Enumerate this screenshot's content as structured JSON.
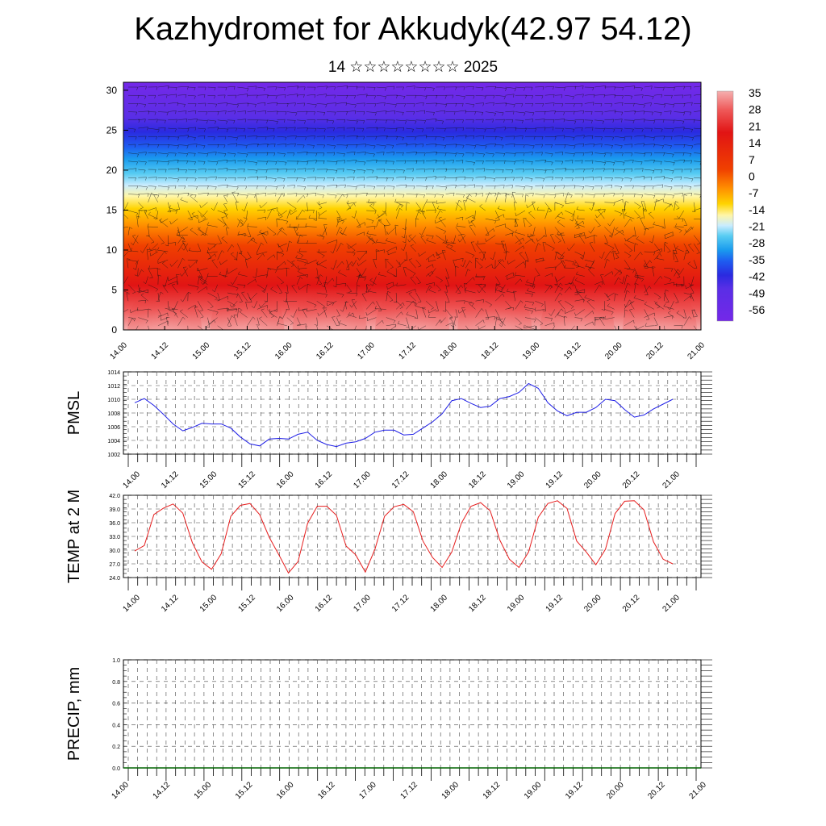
{
  "title": "Kazhydromet for Akkudyk(42.97 54.12)",
  "subtitle": "14 ☆☆☆☆☆☆☆☆ 2025",
  "time_labels": [
    "14.00",
    "14.12",
    "15.00",
    "15.12",
    "16.00",
    "16.12",
    "17.00",
    "17.12",
    "18.00",
    "18.12",
    "19.00",
    "19.12",
    "20.00",
    "20.12",
    "21.00"
  ],
  "chart_data": [
    {
      "type": "heatmap",
      "name": "cross-section",
      "x": [
        "14.00",
        "14.12",
        "15.00",
        "15.12",
        "16.00",
        "16.12",
        "17.00",
        "17.12",
        "18.00",
        "18.12",
        "19.00",
        "19.12",
        "20.00",
        "20.12",
        "21.00"
      ],
      "y_ticks": [
        "0",
        "5",
        "10",
        "15",
        "20",
        "25",
        "30"
      ],
      "ylim": [
        0,
        31
      ],
      "colorbar_labels": [
        "35",
        "28",
        "21",
        "14",
        "7",
        "0",
        "-7",
        "-14",
        "-21",
        "-28",
        "-35",
        "-42",
        "-49",
        "-56"
      ],
      "colors": [
        "#f5b8b8",
        "#e81818",
        "#ff7a00",
        "#ffd000",
        "#fff8a0",
        "#bfe8ff",
        "#18b4ee",
        "#2040ff",
        "#6a28e8"
      ],
      "description_values": "temperature shading with wind barbs by model level"
    },
    {
      "type": "line",
      "ylabel": "PMSL",
      "ylim": [
        1002,
        1014
      ],
      "y_ticks": [
        "1002",
        "1004",
        "1006",
        "1008",
        "1010",
        "1012",
        "1014"
      ],
      "color": "#1e1ee6",
      "values": [
        1009.5,
        1010.1,
        1009.1,
        1007.8,
        1006.4,
        1005.4,
        1005.9,
        1006.5,
        1006.4,
        1006.4,
        1005.8,
        1004.5,
        1003.5,
        1003.2,
        1004.2,
        1004.3,
        1004.2,
        1004.9,
        1005.2,
        1004.0,
        1003.4,
        1003.1,
        1003.6,
        1003.8,
        1004.3,
        1005.2,
        1005.5,
        1005.5,
        1004.8,
        1004.9,
        1005.8,
        1006.7,
        1007.9,
        1009.8,
        1010.1,
        1009.4,
        1008.8,
        1009.0,
        1010.1,
        1010.4,
        1011.0,
        1012.3,
        1011.6,
        1009.5,
        1008.3,
        1007.6,
        1008.1,
        1008.1,
        1008.8,
        1010.0,
        1009.8,
        1008.5,
        1007.4,
        1007.7,
        1008.6,
        1009.3,
        1010.0
      ]
    },
    {
      "type": "line",
      "ylabel": "TEMP at 2 M",
      "ylim": [
        24,
        42
      ],
      "y_ticks": [
        "24.0",
        "27.0",
        "30.0",
        "33.0",
        "36.0",
        "39.0",
        "42.0"
      ],
      "color": "#e61e1e",
      "values": [
        29.8,
        31.0,
        37.8,
        39.2,
        40.1,
        38.1,
        31.6,
        27.4,
        25.8,
        29.2,
        37.4,
        39.8,
        40.2,
        37.8,
        32.8,
        29.0,
        25.0,
        27.5,
        35.9,
        39.6,
        39.6,
        37.6,
        30.9,
        29.0,
        25.2,
        30.2,
        37.4,
        39.5,
        40.0,
        38.4,
        32.0,
        28.4,
        26.2,
        29.6,
        35.9,
        39.6,
        40.4,
        38.6,
        32.2,
        28.0,
        26.2,
        29.6,
        37.2,
        40.2,
        40.8,
        39.1,
        32.0,
        29.6,
        26.8,
        30.2,
        38.0,
        40.7,
        40.8,
        38.8,
        31.8,
        28.0,
        27.0
      ]
    },
    {
      "type": "line",
      "ylabel": "PRECIP, mm",
      "ylim": [
        0,
        1
      ],
      "y_ticks": [
        "0.0",
        "0.2",
        "0.4",
        "0.6",
        "0.8",
        "1.0"
      ],
      "color": "#006400",
      "values": [
        0,
        0,
        0,
        0,
        0,
        0,
        0,
        0,
        0,
        0,
        0,
        0,
        0,
        0,
        0,
        0,
        0,
        0,
        0,
        0,
        0,
        0,
        0,
        0,
        0,
        0,
        0,
        0,
        0,
        0,
        0,
        0,
        0,
        0,
        0,
        0,
        0,
        0,
        0,
        0,
        0,
        0,
        0,
        0,
        0,
        0,
        0,
        0,
        0,
        0,
        0,
        0,
        0,
        0,
        0,
        0,
        0,
        0,
        0,
        0,
        0
      ]
    }
  ]
}
